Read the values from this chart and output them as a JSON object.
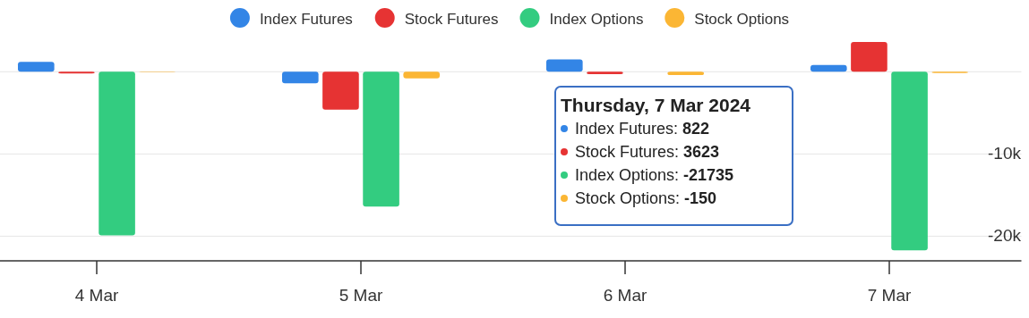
{
  "chart_data": {
    "type": "bar",
    "categories": [
      "4 Mar",
      "5 Mar",
      "6 Mar",
      "7 Mar"
    ],
    "series": [
      {
        "name": "Index Futures",
        "color": "#3385e6",
        "values": [
          1200,
          -1400,
          1500,
          822
        ]
      },
      {
        "name": "Stock Futures",
        "color": "#e63333",
        "values": [
          -200,
          -4600,
          -300,
          3623
        ]
      },
      {
        "name": "Index Options",
        "color": "#33cc80",
        "values": [
          -19900,
          -16400,
          null,
          -21735
        ]
      },
      {
        "name": "Stock Options",
        "color": "#fbb634",
        "values": [
          0,
          -800,
          -400,
          -150
        ]
      }
    ],
    "yticks": [
      {
        "value": 0,
        "label": null
      },
      {
        "value": -10000,
        "label": "-10k"
      },
      {
        "value": -20000,
        "label": "-20k"
      }
    ],
    "ylim": [
      -23000,
      3623
    ],
    "grid": "y",
    "legend": "top",
    "annotations": [
      "Thursday, 7 Mar 2024",
      "Index Futures: 822",
      "Stock Futures: 3623",
      "Index Options: -21735",
      "Stock Options: -150"
    ]
  }
}
